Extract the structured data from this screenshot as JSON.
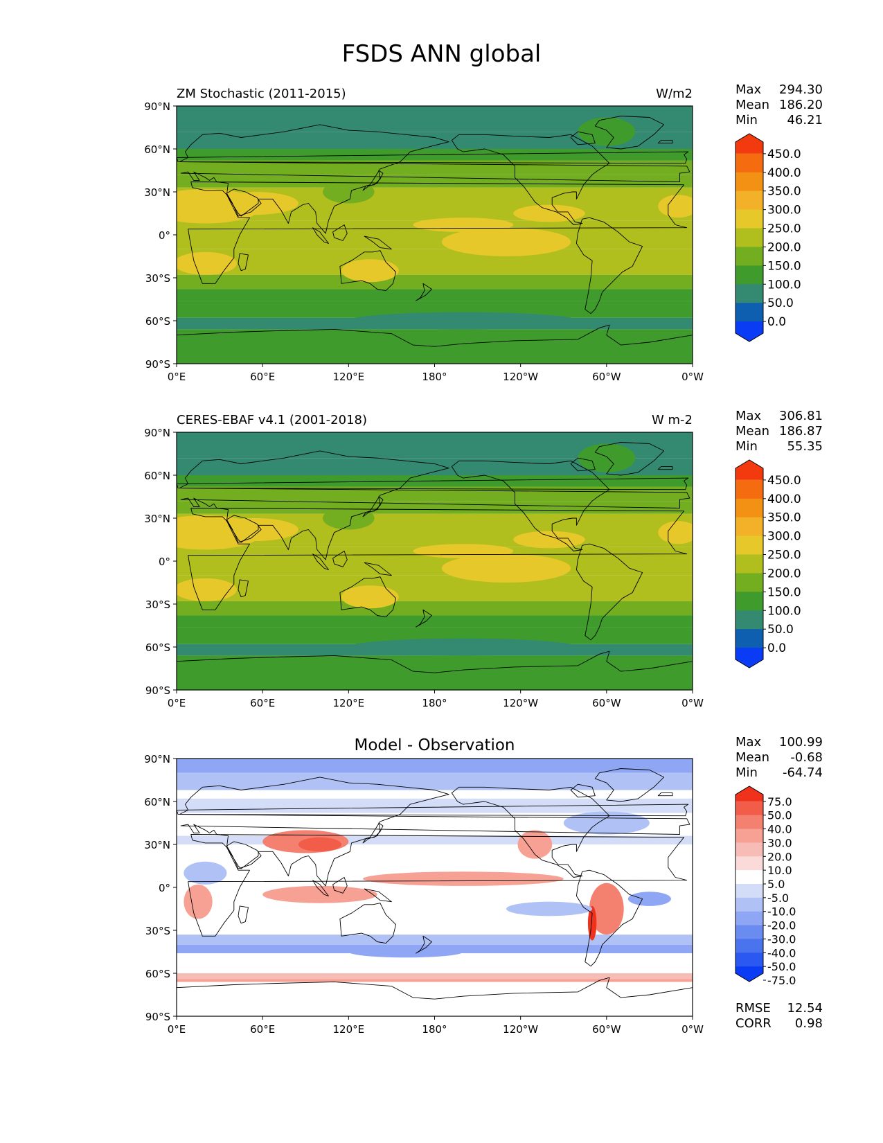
{
  "figure": {
    "title": "FSDS ANN global"
  },
  "axes": {
    "lat_ticks": [
      "90°N",
      "60°N",
      "30°N",
      "0°",
      "30°S",
      "60°S",
      "90°S"
    ],
    "lon_ticks": [
      "0°E",
      "60°E",
      "120°E",
      "180°",
      "120°W",
      "60°W",
      "0°W"
    ]
  },
  "colors": {
    "land_outline": "#000000",
    "abs_levels": [
      "#0a3cf5",
      "#0f5fb0",
      "#348a70",
      "#3f9c2c",
      "#72ae20",
      "#b0bf1e",
      "#e6c82a",
      "#f3b12a",
      "#f39114",
      "#f56c10",
      "#f33a0e"
    ],
    "diff_levels": [
      "#0a3cf5",
      "#2a58f0",
      "#4a74ee",
      "#6a8cf0",
      "#8ea6f3",
      "#b0c2f5",
      "#d4ddf8",
      "#ffffff",
      "#fbdada",
      "#f8bcb6",
      "#f7a195",
      "#f48070",
      "#f25d49",
      "#f0311c"
    ]
  },
  "panels": [
    {
      "id": "model",
      "left_title": "ZM Stochastic (2011-2015)",
      "right_title": "W/m2",
      "center_title": "",
      "stats": [
        {
          "label": "Max",
          "value": "294.30"
        },
        {
          "label": "Mean",
          "value": "186.20"
        },
        {
          "label": "Min",
          "value": "46.21"
        }
      ],
      "colorbar_labels": [
        "450.0",
        "400.0",
        "350.0",
        "300.0",
        "250.0",
        "200.0",
        "150.0",
        "100.0",
        "50.0",
        "0.0"
      ]
    },
    {
      "id": "obs",
      "left_title": "CERES-EBAF v4.1 (2001-2018)",
      "right_title": "W m-2",
      "center_title": "",
      "stats": [
        {
          "label": "Max",
          "value": "306.81"
        },
        {
          "label": "Mean",
          "value": "186.87"
        },
        {
          "label": "Min",
          "value": "55.35"
        }
      ],
      "colorbar_labels": [
        "450.0",
        "400.0",
        "350.0",
        "300.0",
        "250.0",
        "200.0",
        "150.0",
        "100.0",
        "50.0",
        "0.0"
      ]
    },
    {
      "id": "diff",
      "left_title": "",
      "right_title": "",
      "center_title": "Model - Observation",
      "stats": [
        {
          "label": "Max",
          "value": "100.99"
        },
        {
          "label": "Mean",
          "value": "-0.68"
        },
        {
          "label": "Min",
          "value": "-64.74"
        }
      ],
      "colorbar_labels": [
        "75.0",
        "50.0",
        "40.0",
        "30.0",
        "20.0",
        "10.0",
        "5.0",
        "-5.0",
        "-10.0",
        "-20.0",
        "-30.0",
        "-40.0",
        "-50.0",
        "-75.0"
      ],
      "metrics": [
        {
          "label": "RMSE",
          "value": "12.54"
        },
        {
          "label": "CORR",
          "value": "0.98"
        }
      ]
    }
  ]
}
